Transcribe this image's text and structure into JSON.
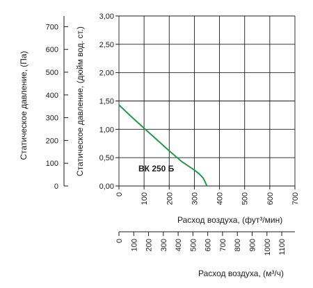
{
  "chart_data": {
    "type": "line",
    "title": "",
    "series": [
      {
        "name": "ВК 250 Б",
        "color": "#1f9a4a",
        "x": [
          0,
          50,
          100,
          150,
          200,
          250,
          280,
          300,
          320,
          335,
          342,
          347,
          350
        ],
        "y": [
          1.43,
          1.22,
          1.02,
          0.82,
          0.62,
          0.43,
          0.34,
          0.28,
          0.21,
          0.14,
          0.08,
          0.03,
          0.0
        ]
      }
    ],
    "x_axis": {
      "label": "Расход воздуха, (фут³/мин)",
      "range": [
        0,
        700
      ],
      "ticks": [
        "0",
        "100",
        "200",
        "300",
        "400",
        "500",
        "600",
        "700"
      ]
    },
    "y_axis": {
      "label": "Статическое давление, (дюйм вод. ст.)",
      "range": [
        0,
        3
      ],
      "ticks": [
        "0,00",
        "0,50",
        "1,00",
        "1,50",
        "2,00",
        "2,50",
        "3,00"
      ]
    },
    "y2_axis": {
      "label": "Статическое давление, (Па)",
      "range_pa": [
        0,
        747
      ],
      "ticks": [
        "0",
        "100",
        "200",
        "300",
        "400",
        "500",
        "600",
        "700"
      ]
    },
    "x2_axis": {
      "label": "Расход воздуха, (м³/ч)",
      "range_m3h": [
        0,
        1189
      ],
      "ticks": [
        "0",
        "100",
        "200",
        "300",
        "400",
        "500",
        "600",
        "700",
        "800",
        "900",
        "1000",
        "1100"
      ]
    },
    "grid": true
  }
}
